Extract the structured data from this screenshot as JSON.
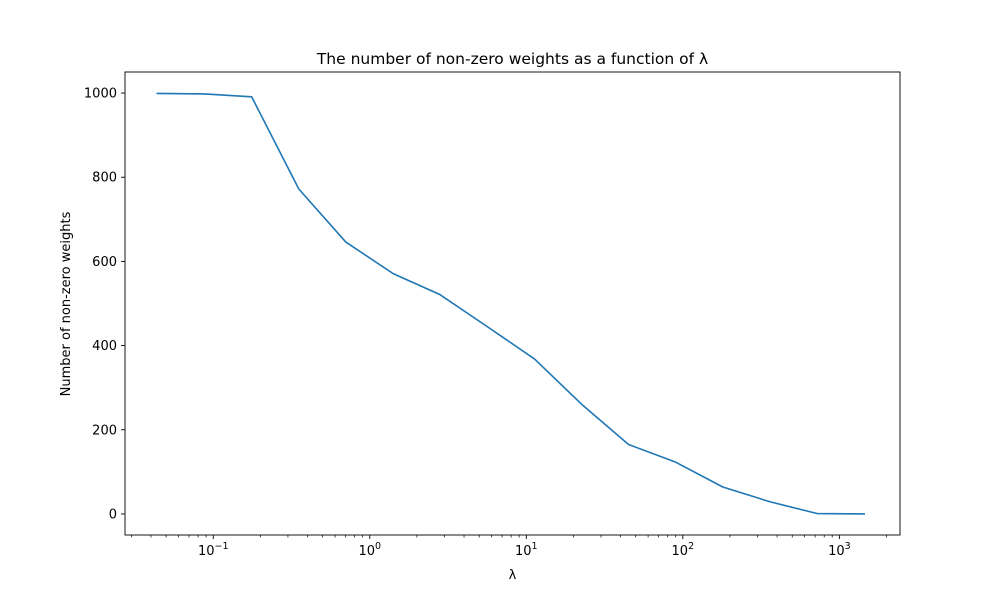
{
  "chart_data": {
    "type": "line",
    "title": "The number of non-zero weights as a function of λ",
    "xlabel": "λ",
    "ylabel": "Number of non-zero weights",
    "xscale": "log",
    "xlim": [
      0.0273,
      2440
    ],
    "ylim": [
      -50,
      1050
    ],
    "grid": false,
    "x_ticks": [
      {
        "value": 0.1,
        "base": "10",
        "exp": "−1"
      },
      {
        "value": 1,
        "base": "10",
        "exp": "0"
      },
      {
        "value": 10,
        "base": "10",
        "exp": "1"
      },
      {
        "value": 100,
        "base": "10",
        "exp": "2"
      },
      {
        "value": 1000,
        "base": "10",
        "exp": "3"
      }
    ],
    "y_ticks": [
      0,
      200,
      400,
      600,
      800,
      1000
    ],
    "series": [
      {
        "color": "#1f77b4",
        "x": [
          0.0439,
          0.0879,
          0.176,
          0.352,
          0.703,
          1.41,
          2.81,
          5.63,
          11.3,
          22.5,
          45.0,
          90.0,
          180,
          360,
          720,
          1440
        ],
        "y": [
          999,
          998,
          991,
          772,
          646,
          571,
          521,
          445,
          368,
          261,
          165,
          123,
          64,
          29,
          1,
          0
        ]
      }
    ]
  }
}
